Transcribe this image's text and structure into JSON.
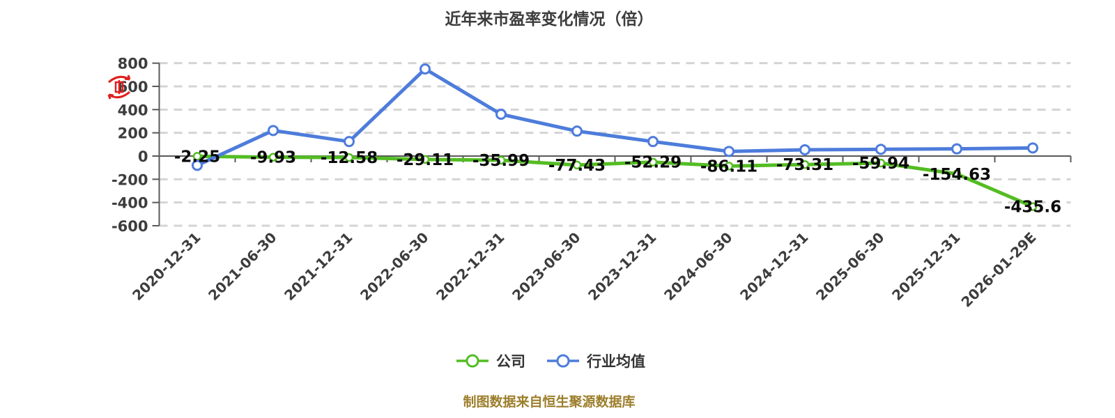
{
  "title": "近年来市盈率变化情况（倍）",
  "footer_note": "制图数据来自恒生聚源数据库",
  "legend": {
    "items": [
      {
        "label": "公司",
        "color": "#53bd23"
      },
      {
        "label": "行业均值",
        "color": "#4d7cdb"
      }
    ]
  },
  "icons": {
    "watermark": "red-refresh-stamp-icon"
  },
  "chart_data": {
    "type": "line",
    "title": "近年来市盈率变化情况（倍）",
    "categories": [
      "2020-12-31",
      "2021-06-30",
      "2021-12-31",
      "2022-06-30",
      "2022-12-31",
      "2023-06-30",
      "2023-12-31",
      "2024-06-30",
      "2024-12-31",
      "2025-06-30",
      "2025-12-31",
      "2026-01-29E"
    ],
    "series": [
      {
        "name": "公司",
        "color": "#53bd23",
        "values": [
          -2.25,
          -9.93,
          -12.58,
          -29.11,
          -35.99,
          -77.43,
          -52.29,
          -86.11,
          -73.31,
          -59.94,
          -154.63,
          -435.6
        ],
        "data_labels": true
      },
      {
        "name": "行业均值",
        "color": "#4d7cdb",
        "values": [
          -80,
          220,
          125,
          750,
          360,
          215,
          125,
          40,
          54,
          58,
          62,
          70
        ],
        "data_labels": false
      }
    ],
    "y_ticks": [
      800,
      600,
      400,
      200,
      0,
      -200,
      -400,
      -600
    ],
    "ylim": [
      -600,
      800
    ],
    "xlabel": "",
    "ylabel": "",
    "grid": "horizontal-dashed",
    "x_label_rotation": 45,
    "legend_position": "bottom"
  }
}
